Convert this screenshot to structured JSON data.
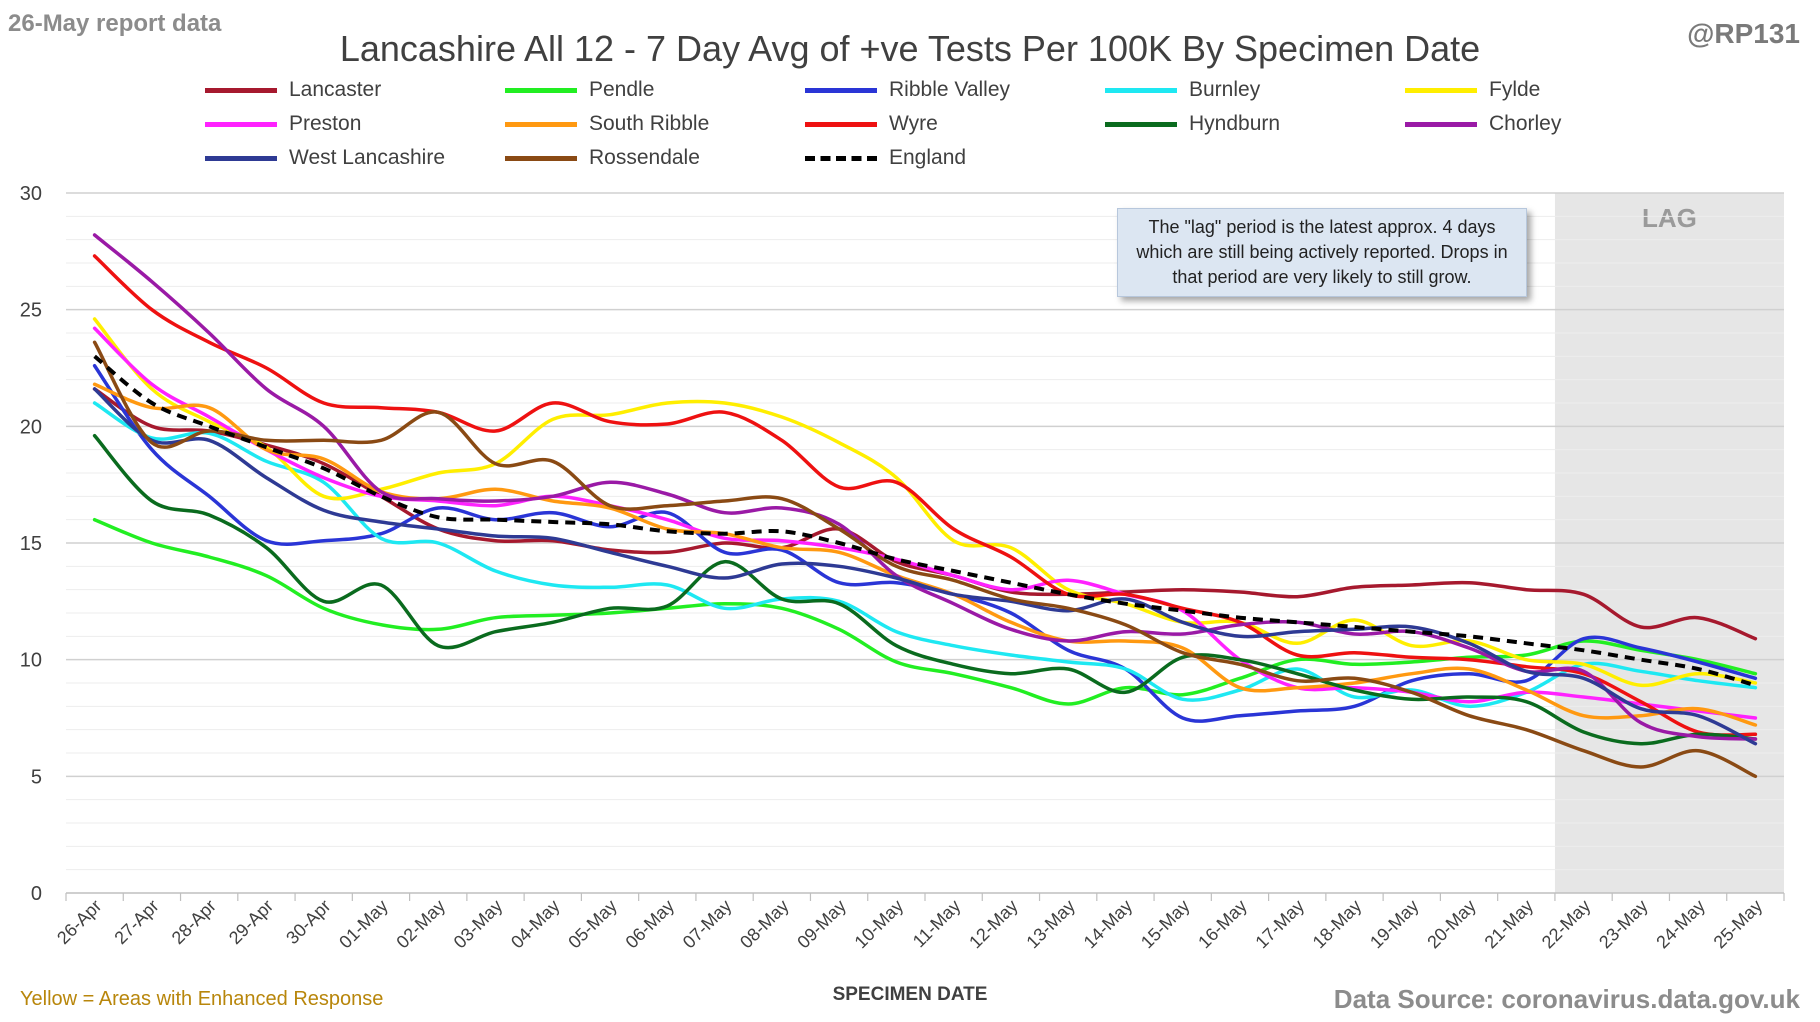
{
  "header": {
    "report_date": "26-May report data",
    "handle": "@RP131"
  },
  "annotations": {
    "note": "The \"lag\" period is the latest approx. 4 days which are still being actively reported. Drops in that period are very likely to still grow.",
    "lag_label": "LAG"
  },
  "footer": {
    "left": "Yellow = Areas with Enhanced Response",
    "right": "Data Source: coronavirus.data.gov.uk"
  },
  "chart_data": {
    "type": "line",
    "title": "Lancashire All 12 - 7 Day Avg of +ve Tests Per 100K By Specimen Date",
    "xlabel": "SPECIMEN DATE",
    "ylabel": "",
    "ylim": [
      0,
      30
    ],
    "yticks": [
      0,
      5,
      10,
      15,
      20,
      25,
      30
    ],
    "grid": true,
    "legend_position": "top",
    "lag_start": "21-May",
    "categories": [
      "26-Apr",
      "27-Apr",
      "28-Apr",
      "29-Apr",
      "30-Apr",
      "01-May",
      "02-May",
      "03-May",
      "04-May",
      "05-May",
      "06-May",
      "07-May",
      "08-May",
      "09-May",
      "10-May",
      "11-May",
      "12-May",
      "13-May",
      "14-May",
      "15-May",
      "16-May",
      "17-May",
      "18-May",
      "19-May",
      "20-May",
      "21-May",
      "22-May",
      "23-May",
      "24-May",
      "25-May"
    ],
    "series": [
      {
        "name": "Lancaster",
        "color": "#a6192e",
        "dash": false,
        "values": [
          21.6,
          20.0,
          19.8,
          19.2,
          18.4,
          17.0,
          15.6,
          15.1,
          15.1,
          14.7,
          14.6,
          15.0,
          14.8,
          15.6,
          14.2,
          13.6,
          12.9,
          12.8,
          12.9,
          13.0,
          12.9,
          12.7,
          13.1,
          13.2,
          13.3,
          13.0,
          12.8,
          11.4,
          11.8,
          10.9
        ]
      },
      {
        "name": "Pendle",
        "color": "#22ee22",
        "dash": false,
        "values": [
          16.0,
          15.0,
          14.4,
          13.6,
          12.2,
          11.5,
          11.3,
          11.8,
          11.9,
          12.0,
          12.2,
          12.4,
          12.2,
          11.3,
          9.9,
          9.4,
          8.8,
          8.1,
          8.8,
          8.5,
          9.2,
          10.0,
          9.8,
          9.9,
          10.1,
          10.2,
          10.8,
          10.4,
          10.0,
          9.4
        ]
      },
      {
        "name": "Ribble Valley",
        "color": "#2a35d6",
        "dash": false,
        "values": [
          22.6,
          19.0,
          17.0,
          15.1,
          15.1,
          15.4,
          16.5,
          16.0,
          16.3,
          15.7,
          16.3,
          14.6,
          14.7,
          13.3,
          13.3,
          12.8,
          12.0,
          10.4,
          9.6,
          7.5,
          7.6,
          7.8,
          8.0,
          9.1,
          9.4,
          9.1,
          10.9,
          10.5,
          9.9,
          9.2
        ]
      },
      {
        "name": "Burnley",
        "color": "#1ee8f2",
        "dash": false,
        "values": [
          21.0,
          19.5,
          19.7,
          18.5,
          17.6,
          15.2,
          15.0,
          13.8,
          13.2,
          13.1,
          13.2,
          12.2,
          12.6,
          12.5,
          11.2,
          10.6,
          10.2,
          9.9,
          9.6,
          8.3,
          8.7,
          9.6,
          8.4,
          8.7,
          8.0,
          8.6,
          9.8,
          9.5,
          9.1,
          8.8
        ]
      },
      {
        "name": "Fylde",
        "color": "#ffee00",
        "dash": false,
        "values": [
          24.6,
          21.6,
          20.2,
          19.1,
          17.0,
          17.3,
          18.0,
          18.4,
          20.3,
          20.5,
          21.0,
          21.0,
          20.4,
          19.3,
          17.8,
          15.1,
          14.8,
          13.0,
          12.4,
          11.6,
          11.6,
          10.7,
          11.7,
          10.6,
          10.8,
          10.0,
          9.8,
          8.9,
          9.4,
          9.0
        ]
      },
      {
        "name": "Preston",
        "color": "#ff22ff",
        "dash": false,
        "values": [
          24.2,
          21.8,
          20.4,
          19.0,
          17.8,
          17.0,
          16.8,
          16.6,
          17.0,
          16.6,
          16.0,
          15.2,
          15.1,
          14.8,
          14.3,
          13.6,
          13.0,
          13.4,
          12.8,
          12.1,
          10.0,
          8.8,
          8.8,
          8.6,
          8.2,
          8.6,
          8.4,
          8.1,
          7.8,
          7.5
        ]
      },
      {
        "name": "South Ribble",
        "color": "#ff9911",
        "dash": false,
        "values": [
          21.8,
          20.8,
          20.8,
          19.0,
          18.6,
          17.2,
          16.9,
          17.3,
          16.8,
          16.5,
          15.6,
          15.4,
          14.8,
          14.6,
          13.6,
          12.8,
          11.6,
          10.8,
          10.8,
          10.5,
          8.8,
          8.8,
          9.0,
          9.4,
          9.6,
          8.7,
          7.6,
          7.6,
          7.9,
          7.2
        ]
      },
      {
        "name": "Wyre",
        "color": "#ee1111",
        "dash": false,
        "values": [
          27.3,
          25.0,
          23.6,
          22.5,
          21.0,
          20.8,
          20.6,
          19.8,
          21.0,
          20.2,
          20.1,
          20.6,
          19.4,
          17.4,
          17.6,
          15.6,
          14.4,
          12.8,
          12.8,
          12.2,
          11.6,
          10.2,
          10.3,
          10.1,
          10.0,
          9.7,
          9.4,
          8.2,
          6.9,
          6.8
        ]
      },
      {
        "name": "Hyndburn",
        "color": "#0a6b1e",
        "dash": false,
        "values": [
          19.6,
          16.8,
          16.2,
          14.8,
          12.5,
          13.2,
          10.6,
          11.2,
          11.6,
          12.2,
          12.3,
          14.2,
          12.6,
          12.4,
          10.6,
          9.8,
          9.4,
          9.6,
          8.6,
          10.1,
          10.0,
          9.4,
          8.7,
          8.3,
          8.4,
          8.2,
          6.9,
          6.4,
          6.8,
          6.6
        ]
      },
      {
        "name": "Chorley",
        "color": "#9a1aa6",
        "dash": false,
        "values": [
          28.2,
          26.2,
          24.0,
          21.6,
          20.0,
          17.2,
          16.9,
          16.8,
          17.0,
          17.6,
          17.1,
          16.3,
          16.5,
          15.8,
          13.6,
          12.4,
          11.3,
          10.8,
          11.2,
          11.1,
          11.5,
          11.6,
          11.1,
          11.2,
          10.5,
          9.5,
          9.5,
          7.3,
          6.7,
          6.6
        ]
      },
      {
        "name": "West Lancashire",
        "color": "#2e3a94",
        "dash": false,
        "values": [
          21.6,
          19.4,
          19.4,
          17.8,
          16.4,
          15.9,
          15.6,
          15.3,
          15.2,
          14.6,
          14.0,
          13.5,
          14.1,
          14.0,
          13.5,
          12.8,
          12.5,
          12.1,
          12.6,
          11.6,
          11.0,
          11.2,
          11.3,
          11.4,
          10.7,
          9.5,
          9.2,
          7.9,
          7.6,
          6.4
        ]
      },
      {
        "name": "Rossendale",
        "color": "#8a4a14",
        "dash": false,
        "values": [
          23.6,
          19.3,
          19.8,
          19.4,
          19.4,
          19.4,
          20.6,
          18.4,
          18.5,
          16.6,
          16.6,
          16.8,
          16.9,
          15.6,
          14.0,
          13.4,
          12.6,
          12.2,
          11.5,
          10.3,
          9.8,
          9.1,
          9.2,
          8.6,
          7.6,
          7.0,
          6.1,
          5.4,
          6.1,
          5.0
        ]
      },
      {
        "name": "England",
        "color": "#000000",
        "dash": true,
        "values": [
          23.0,
          21.0,
          20.0,
          19.1,
          18.2,
          17.0,
          16.1,
          16.0,
          15.9,
          15.8,
          15.5,
          15.4,
          15.5,
          15.0,
          14.3,
          13.8,
          13.3,
          12.8,
          12.4,
          12.1,
          11.8,
          11.6,
          11.4,
          11.2,
          11.0,
          10.7,
          10.4,
          10.0,
          9.6,
          8.9
        ]
      }
    ]
  }
}
